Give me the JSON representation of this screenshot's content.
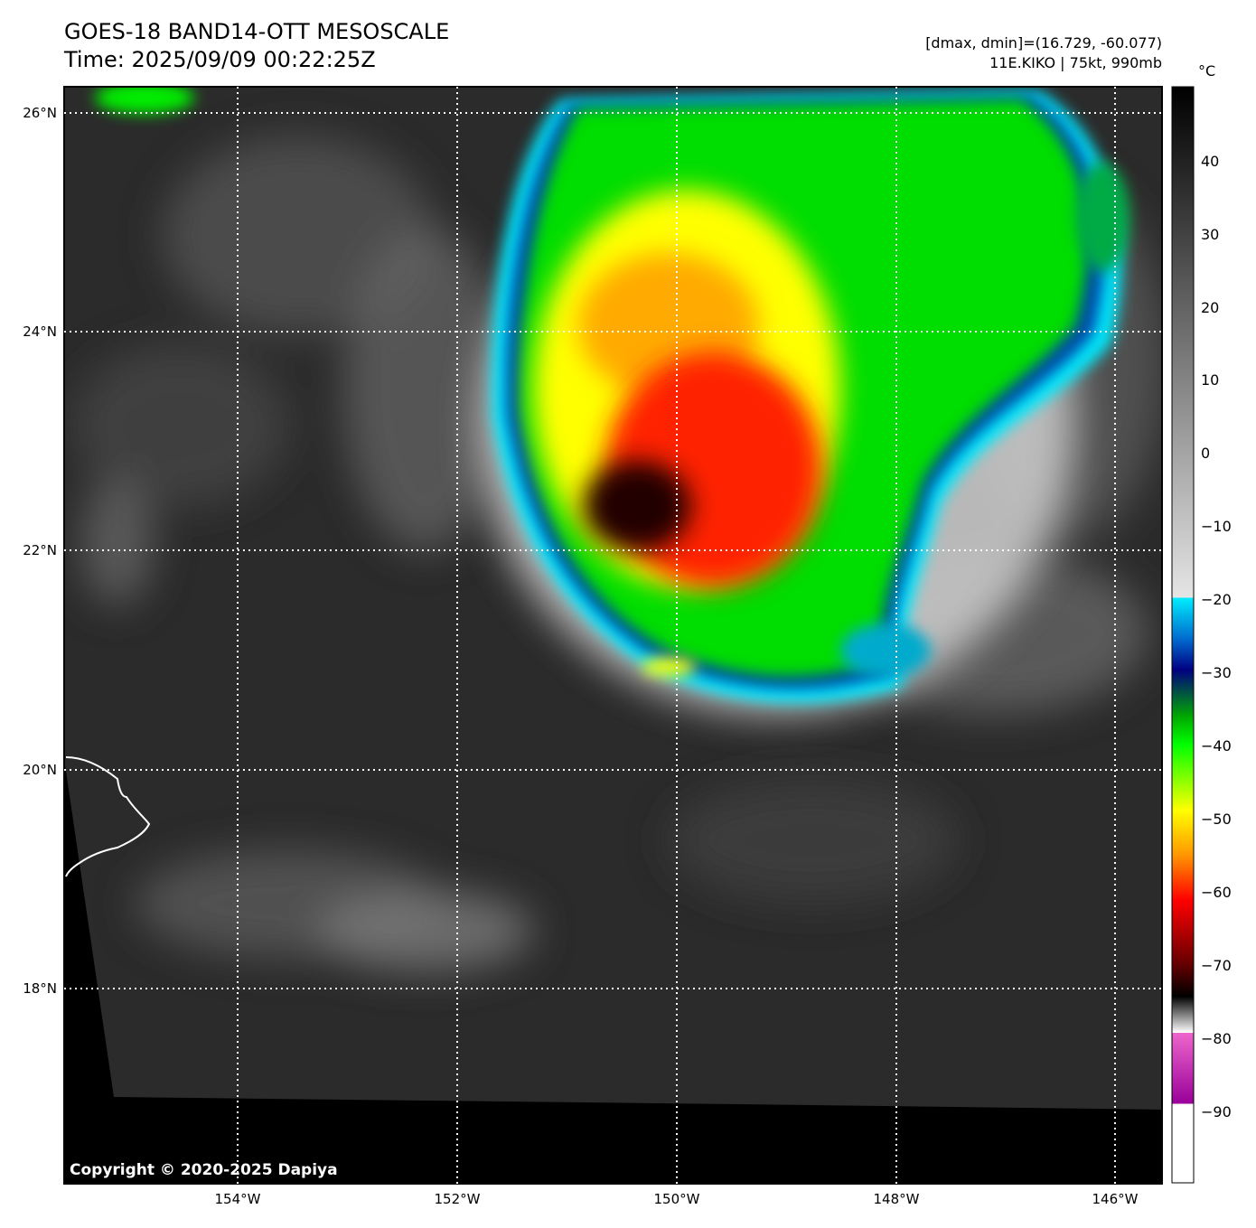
{
  "header": {
    "title_line1": "GOES-18 BAND14-OTT MESOSCALE",
    "title_line2": "Time: 2025/09/09 00:22:25Z",
    "info_line1": "[dmax, dmin]=(16.729, -60.077)",
    "info_line2": "11E.KIKO | 75kt, 990mb"
  },
  "map": {
    "lat_labels": [
      "26°N",
      "24°N",
      "22°N",
      "20°N",
      "18°N"
    ],
    "lon_labels": [
      "154°W",
      "152°W",
      "150°W",
      "148°W",
      "146°W"
    ],
    "copyright": "Copyright © 2020-2025 Dapiya"
  },
  "colorbar": {
    "unit": "°C",
    "ticks": [
      "40",
      "30",
      "20",
      "10",
      "0",
      "−10",
      "−20",
      "−30",
      "−40",
      "−50",
      "−60",
      "−70",
      "−80",
      "−90"
    ]
  },
  "colors": {
    "cloud_tops_cold": "#ff0000",
    "cloud_tops_mid": "#ffff00",
    "cloud_tops_edge": "#00ff00",
    "cyan_band": "#00eeff",
    "ocean_background": "#2b2b2b",
    "no_data": "#000000"
  }
}
